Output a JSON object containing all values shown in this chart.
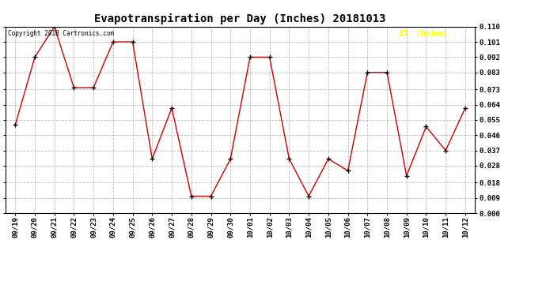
{
  "title": "Evapotranspiration per Day (Inches) 20181013",
  "copyright": "Copyright 2018 Cartronics.com",
  "legend_label": "ET  (Inches)",
  "legend_bg": "#FF0000",
  "legend_text_color": "#FFFF00",
  "line_color": "#CC0000",
  "marker_color": "#000000",
  "background_color": "#FFFFFF",
  "grid_color": "#BBBBBB",
  "x_labels": [
    "09/19",
    "09/20",
    "09/21",
    "09/22",
    "09/23",
    "09/24",
    "09/25",
    "09/26",
    "09/27",
    "09/28",
    "09/29",
    "09/30",
    "10/01",
    "10/02",
    "10/03",
    "10/04",
    "10/05",
    "10/06",
    "10/07",
    "10/08",
    "10/09",
    "10/10",
    "10/11",
    "10/12"
  ],
  "y_values": [
    0.052,
    0.092,
    0.11,
    0.074,
    0.074,
    0.101,
    0.101,
    0.032,
    0.062,
    0.01,
    0.01,
    0.032,
    0.092,
    0.092,
    0.032,
    0.01,
    0.032,
    0.025,
    0.083,
    0.083,
    0.022,
    0.051,
    0.037,
    0.062
  ],
  "ylim": [
    0.0,
    0.11
  ],
  "yticks": [
    0.0,
    0.009,
    0.018,
    0.028,
    0.037,
    0.046,
    0.055,
    0.064,
    0.073,
    0.083,
    0.092,
    0.101,
    0.11
  ],
  "title_fontsize": 10,
  "tick_fontsize": 6.5
}
